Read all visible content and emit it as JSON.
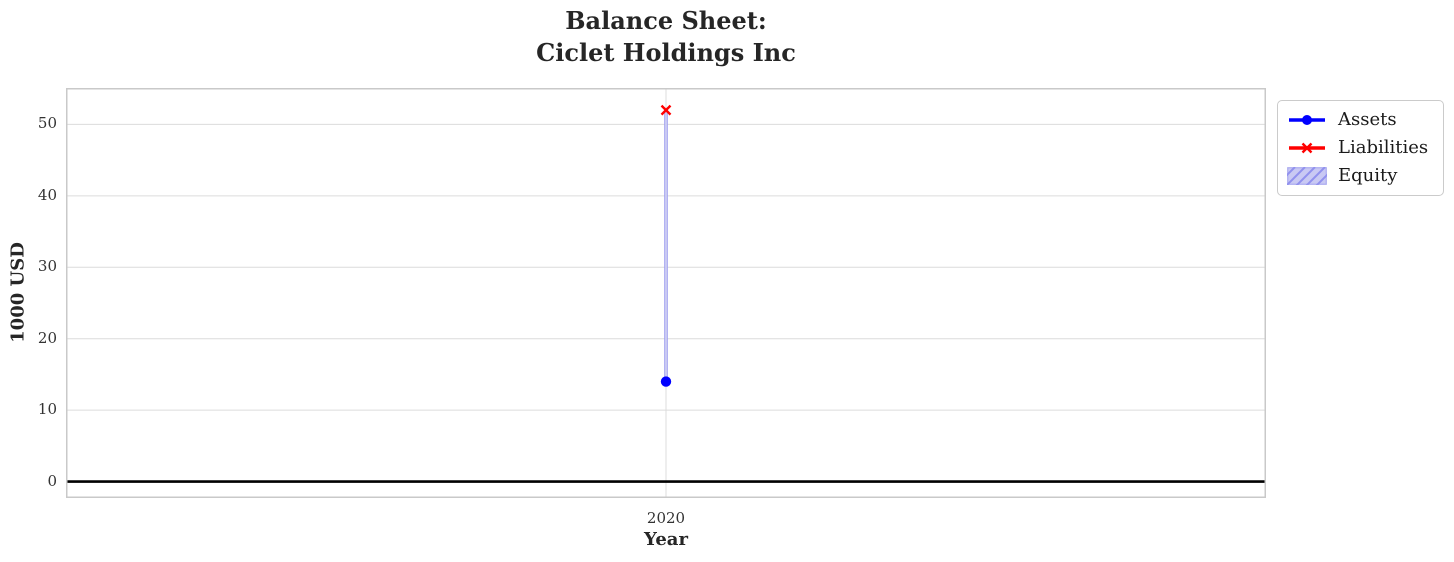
{
  "chart_data": {
    "type": "line",
    "title": "Balance Sheet:\nCiclet Holdings Inc",
    "title_lines": [
      "Balance Sheet:",
      "Ciclet Holdings Inc"
    ],
    "xlabel": "Year",
    "ylabel": "1000 USD",
    "x": [
      2020
    ],
    "xtick_labels": [
      "2020"
    ],
    "yticks": [
      0,
      10,
      20,
      30,
      40,
      50
    ],
    "xlim": [
      2019.5,
      2020.5
    ],
    "ylim": [
      -2.3,
      55.1
    ],
    "grid": true,
    "zero_line": true,
    "zero_line_color": "#000000",
    "grid_color": "#dcdcdc",
    "spine_color": "#c9c9c9",
    "series": [
      {
        "name": "Assets",
        "plot_type": "line",
        "marker": "circle",
        "color": "#0000ff",
        "values": [
          14
        ]
      },
      {
        "name": "Liabilities",
        "plot_type": "line",
        "marker": "x",
        "color": "#ff0000",
        "values": [
          52
        ]
      },
      {
        "name": "Equity",
        "plot_type": "bar",
        "hatch": "/",
        "fill_color": "#c9c9f3",
        "hatch_color": "#9191ee",
        "values": [
          -38
        ],
        "bar_span": [
          [
            14,
            52
          ]
        ]
      }
    ],
    "legend": {
      "position": "outside-upper-right",
      "entries": [
        "Assets",
        "Liabilities",
        "Equity"
      ]
    }
  }
}
